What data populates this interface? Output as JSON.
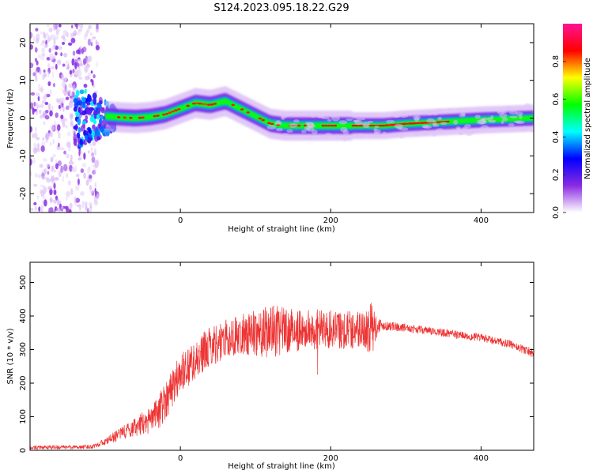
{
  "figure_title": "S124.2023.095.18.22.G29",
  "chart_data": [
    {
      "type": "heatmap",
      "xlabel": "Height of straight line (km)",
      "ylabel": "Frequency (Hz)",
      "xlim": [
        -200,
        470
      ],
      "ylim": [
        -25,
        25
      ],
      "xticks": [
        0,
        200,
        400
      ],
      "yticks": [
        -20,
        -10,
        0,
        10,
        20
      ],
      "ridge": {
        "x": [
          -100,
          -80,
          -60,
          -40,
          -20,
          0,
          20,
          40,
          60,
          70,
          80,
          100,
          120,
          140,
          160,
          180,
          200,
          220,
          240,
          270,
          300,
          350,
          400,
          470
        ],
        "freq": [
          0.5,
          0.2,
          0,
          0.3,
          1,
          2.5,
          4,
          3.5,
          4.5,
          3.5,
          2.5,
          0.5,
          -1.5,
          -2,
          -2,
          -2,
          -2,
          -2,
          -2,
          -2,
          -1.5,
          -1,
          -0.5,
          0
        ]
      },
      "colorbar": {
        "label": "Normalized spectral amplitude",
        "range": [
          0,
          1
        ],
        "ticks": [
          "0.0",
          "0.2",
          "0.4",
          "0.6",
          "0.8"
        ],
        "colors": [
          "#ffffff",
          "#8a2be2",
          "#0000ff",
          "#00ffff",
          "#00ff00",
          "#ffff00",
          "#ff0000",
          "#ff1493"
        ]
      }
    },
    {
      "type": "line",
      "xlabel": "Height of straight line (km)",
      "ylabel": "SNR (10 * v/v)",
      "xlim": [
        -200,
        470
      ],
      "ylim": [
        0,
        560
      ],
      "xticks": [
        0,
        200,
        400
      ],
      "yticks": [
        0,
        100,
        200,
        300,
        400,
        500
      ],
      "color": "#ee3333",
      "envelope": {
        "x": [
          -200,
          -120,
          -100,
          -80,
          -60,
          -40,
          -30,
          -20,
          -10,
          0,
          20,
          40,
          60,
          80,
          100,
          120,
          140,
          160,
          180,
          200,
          220,
          240,
          255,
          262,
          270,
          300,
          350,
          400,
          440,
          470
        ],
        "mean": [
          8,
          10,
          25,
          50,
          70,
          90,
          110,
          150,
          190,
          230,
          270,
          310,
          330,
          345,
          350,
          355,
          355,
          358,
          360,
          360,
          360,
          360,
          362,
          370,
          372,
          365,
          350,
          335,
          315,
          290
        ],
        "spread": [
          6,
          6,
          10,
          20,
          30,
          40,
          50,
          60,
          60,
          60,
          60,
          60,
          60,
          60,
          70,
          80,
          70,
          60,
          60,
          60,
          60,
          60,
          80,
          30,
          15,
          12,
          12,
          12,
          12,
          15
        ]
      }
    }
  ]
}
